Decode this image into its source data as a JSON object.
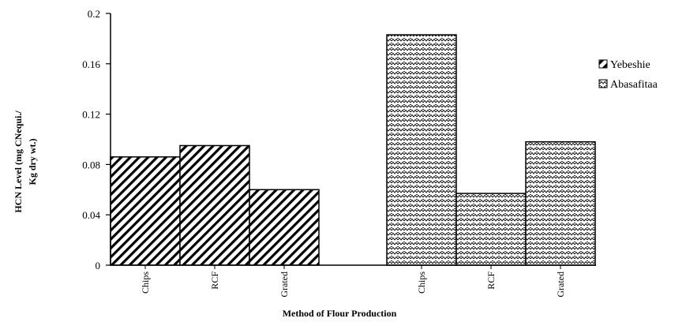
{
  "chart_data": {
    "type": "bar",
    "categories": [
      "Chips",
      "RCF",
      "Grated"
    ],
    "series": [
      {
        "name": "Yebeshie",
        "values": [
          0.086,
          0.095,
          0.06
        ],
        "pattern": "diagonal-stripes"
      },
      {
        "name": "Abasafitaa",
        "values": [
          0.183,
          0.057,
          0.098
        ],
        "pattern": "zigzag"
      }
    ],
    "ylim": [
      0,
      0.2
    ],
    "yticks": [
      "0",
      "0.04",
      "0.08",
      "0.12",
      "0.16",
      "0.2"
    ],
    "ylabel_line1": "HCN Level (mg CNequi./",
    "ylabel_line2": "Kg dry wt.)",
    "xlabel": "Method of Flour Production",
    "legend_position": "right",
    "grid": false,
    "colors": {
      "bar_stroke": "#000000",
      "bar_fill": "#ffffff"
    }
  }
}
